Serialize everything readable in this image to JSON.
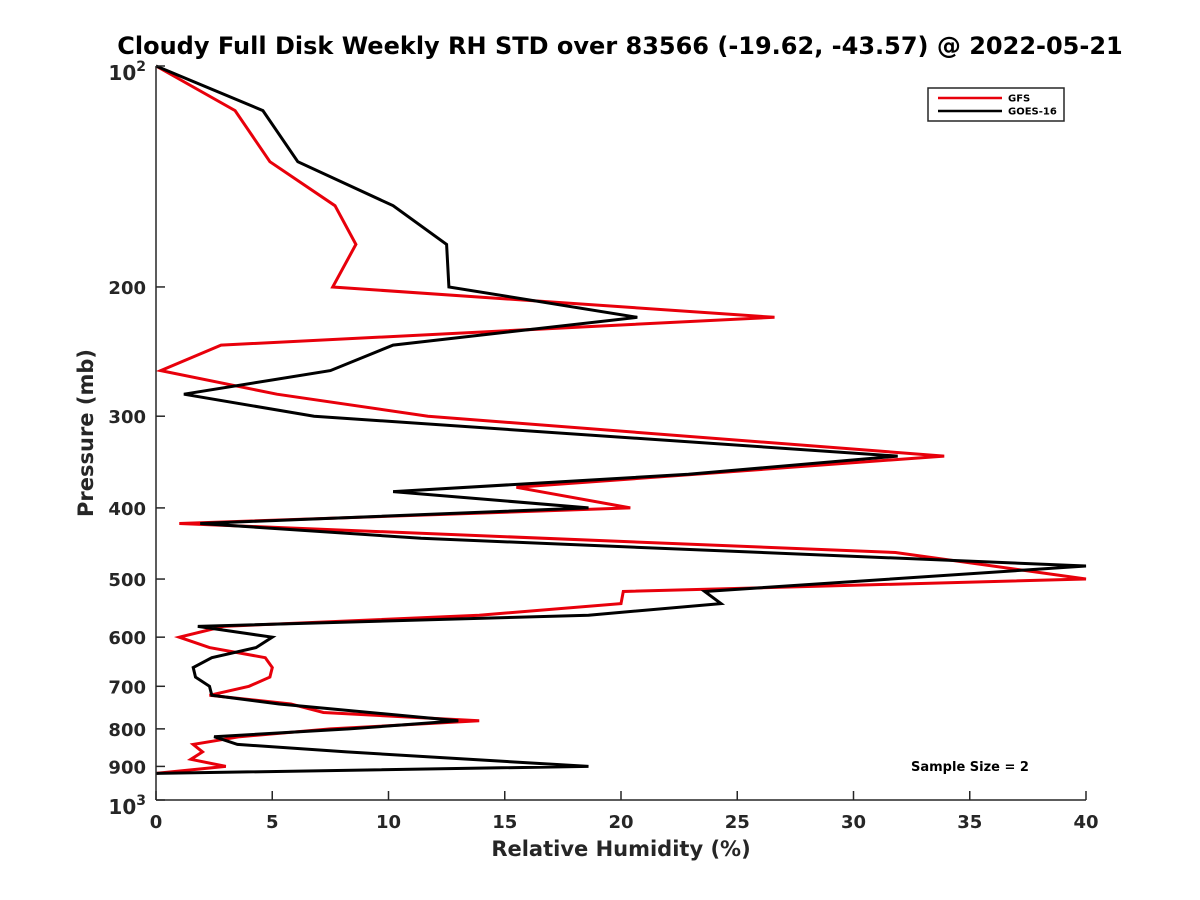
{
  "chart_data": {
    "type": "line",
    "title": "Cloudy Full Disk Weekly RH STD over 83566 (-19.62, -43.57) @ 2022-05-21",
    "xlabel": "Relative Humidity (%)",
    "ylabel": "Pressure (mb)",
    "xlim": [
      0,
      40
    ],
    "ylim": [
      100,
      1000
    ],
    "y_scale": "log",
    "y_reversed": true,
    "x_ticks": [
      "0",
      "5",
      "10",
      "15",
      "20",
      "25",
      "30",
      "35",
      "40"
    ],
    "y_ticks": [
      {
        "value": 100,
        "label": "10",
        "power": "2"
      },
      {
        "value": 200,
        "label": "200"
      },
      {
        "value": 300,
        "label": "300"
      },
      {
        "value": 400,
        "label": "400"
      },
      {
        "value": 500,
        "label": "500"
      },
      {
        "value": 600,
        "label": "600"
      },
      {
        "value": 700,
        "label": "700"
      },
      {
        "value": 800,
        "label": "800"
      },
      {
        "value": 900,
        "label": "900"
      },
      {
        "value": 1000,
        "label": "10",
        "power": "3"
      }
    ],
    "grid": false,
    "legend_position": "top-right",
    "annotation": "Sample Size = 2",
    "series": [
      {
        "name": "GFS",
        "color": "#e8000b",
        "points": [
          [
            0.0,
            100
          ],
          [
            3.4,
            115
          ],
          [
            4.9,
            135
          ],
          [
            7.7,
            155
          ],
          [
            8.6,
            175
          ],
          [
            7.6,
            200
          ],
          [
            26.6,
            220
          ],
          [
            2.8,
            240
          ],
          [
            0.2,
            260
          ],
          [
            5.2,
            280
          ],
          [
            11.7,
            300
          ],
          [
            33.9,
            340
          ],
          [
            15.5,
            375
          ],
          [
            20.4,
            400
          ],
          [
            1.0,
            420
          ],
          [
            31.8,
            460
          ],
          [
            40.0,
            500
          ],
          [
            20.1,
            520
          ],
          [
            20.0,
            540
          ],
          [
            13.9,
            560
          ],
          [
            2.9,
            580
          ],
          [
            1.0,
            600
          ],
          [
            2.3,
            620
          ],
          [
            4.7,
            640
          ],
          [
            5.0,
            660
          ],
          [
            4.9,
            680
          ],
          [
            4.0,
            700
          ],
          [
            2.3,
            720
          ],
          [
            5.8,
            740
          ],
          [
            7.2,
            760
          ],
          [
            13.9,
            780
          ],
          [
            7.5,
            800
          ],
          [
            3.6,
            820
          ],
          [
            1.6,
            840
          ],
          [
            2.0,
            860
          ],
          [
            1.5,
            880
          ],
          [
            3.0,
            900
          ],
          [
            0.0,
            920
          ]
        ]
      },
      {
        "name": "GOES-16",
        "color": "#000000",
        "points": [
          [
            0.0,
            100
          ],
          [
            4.6,
            115
          ],
          [
            6.1,
            135
          ],
          [
            10.2,
            155
          ],
          [
            12.5,
            175
          ],
          [
            12.6,
            200
          ],
          [
            20.7,
            220
          ],
          [
            10.2,
            240
          ],
          [
            7.5,
            260
          ],
          [
            1.2,
            280
          ],
          [
            6.8,
            300
          ],
          [
            31.9,
            340
          ],
          [
            22.9,
            360
          ],
          [
            10.2,
            380
          ],
          [
            18.6,
            400
          ],
          [
            1.9,
            420
          ],
          [
            11.4,
            440
          ],
          [
            40.0,
            480
          ],
          [
            23.6,
            520
          ],
          [
            24.3,
            540
          ],
          [
            18.6,
            560
          ],
          [
            1.8,
            580
          ],
          [
            5.0,
            600
          ],
          [
            4.3,
            620
          ],
          [
            2.4,
            640
          ],
          [
            1.6,
            660
          ],
          [
            1.7,
            680
          ],
          [
            2.3,
            700
          ],
          [
            2.4,
            720
          ],
          [
            5.3,
            740
          ],
          [
            13.0,
            780
          ],
          [
            8.3,
            800
          ],
          [
            2.5,
            820
          ],
          [
            3.5,
            840
          ],
          [
            8.2,
            860
          ],
          [
            18.6,
            900
          ],
          [
            0.0,
            920
          ]
        ]
      }
    ]
  }
}
